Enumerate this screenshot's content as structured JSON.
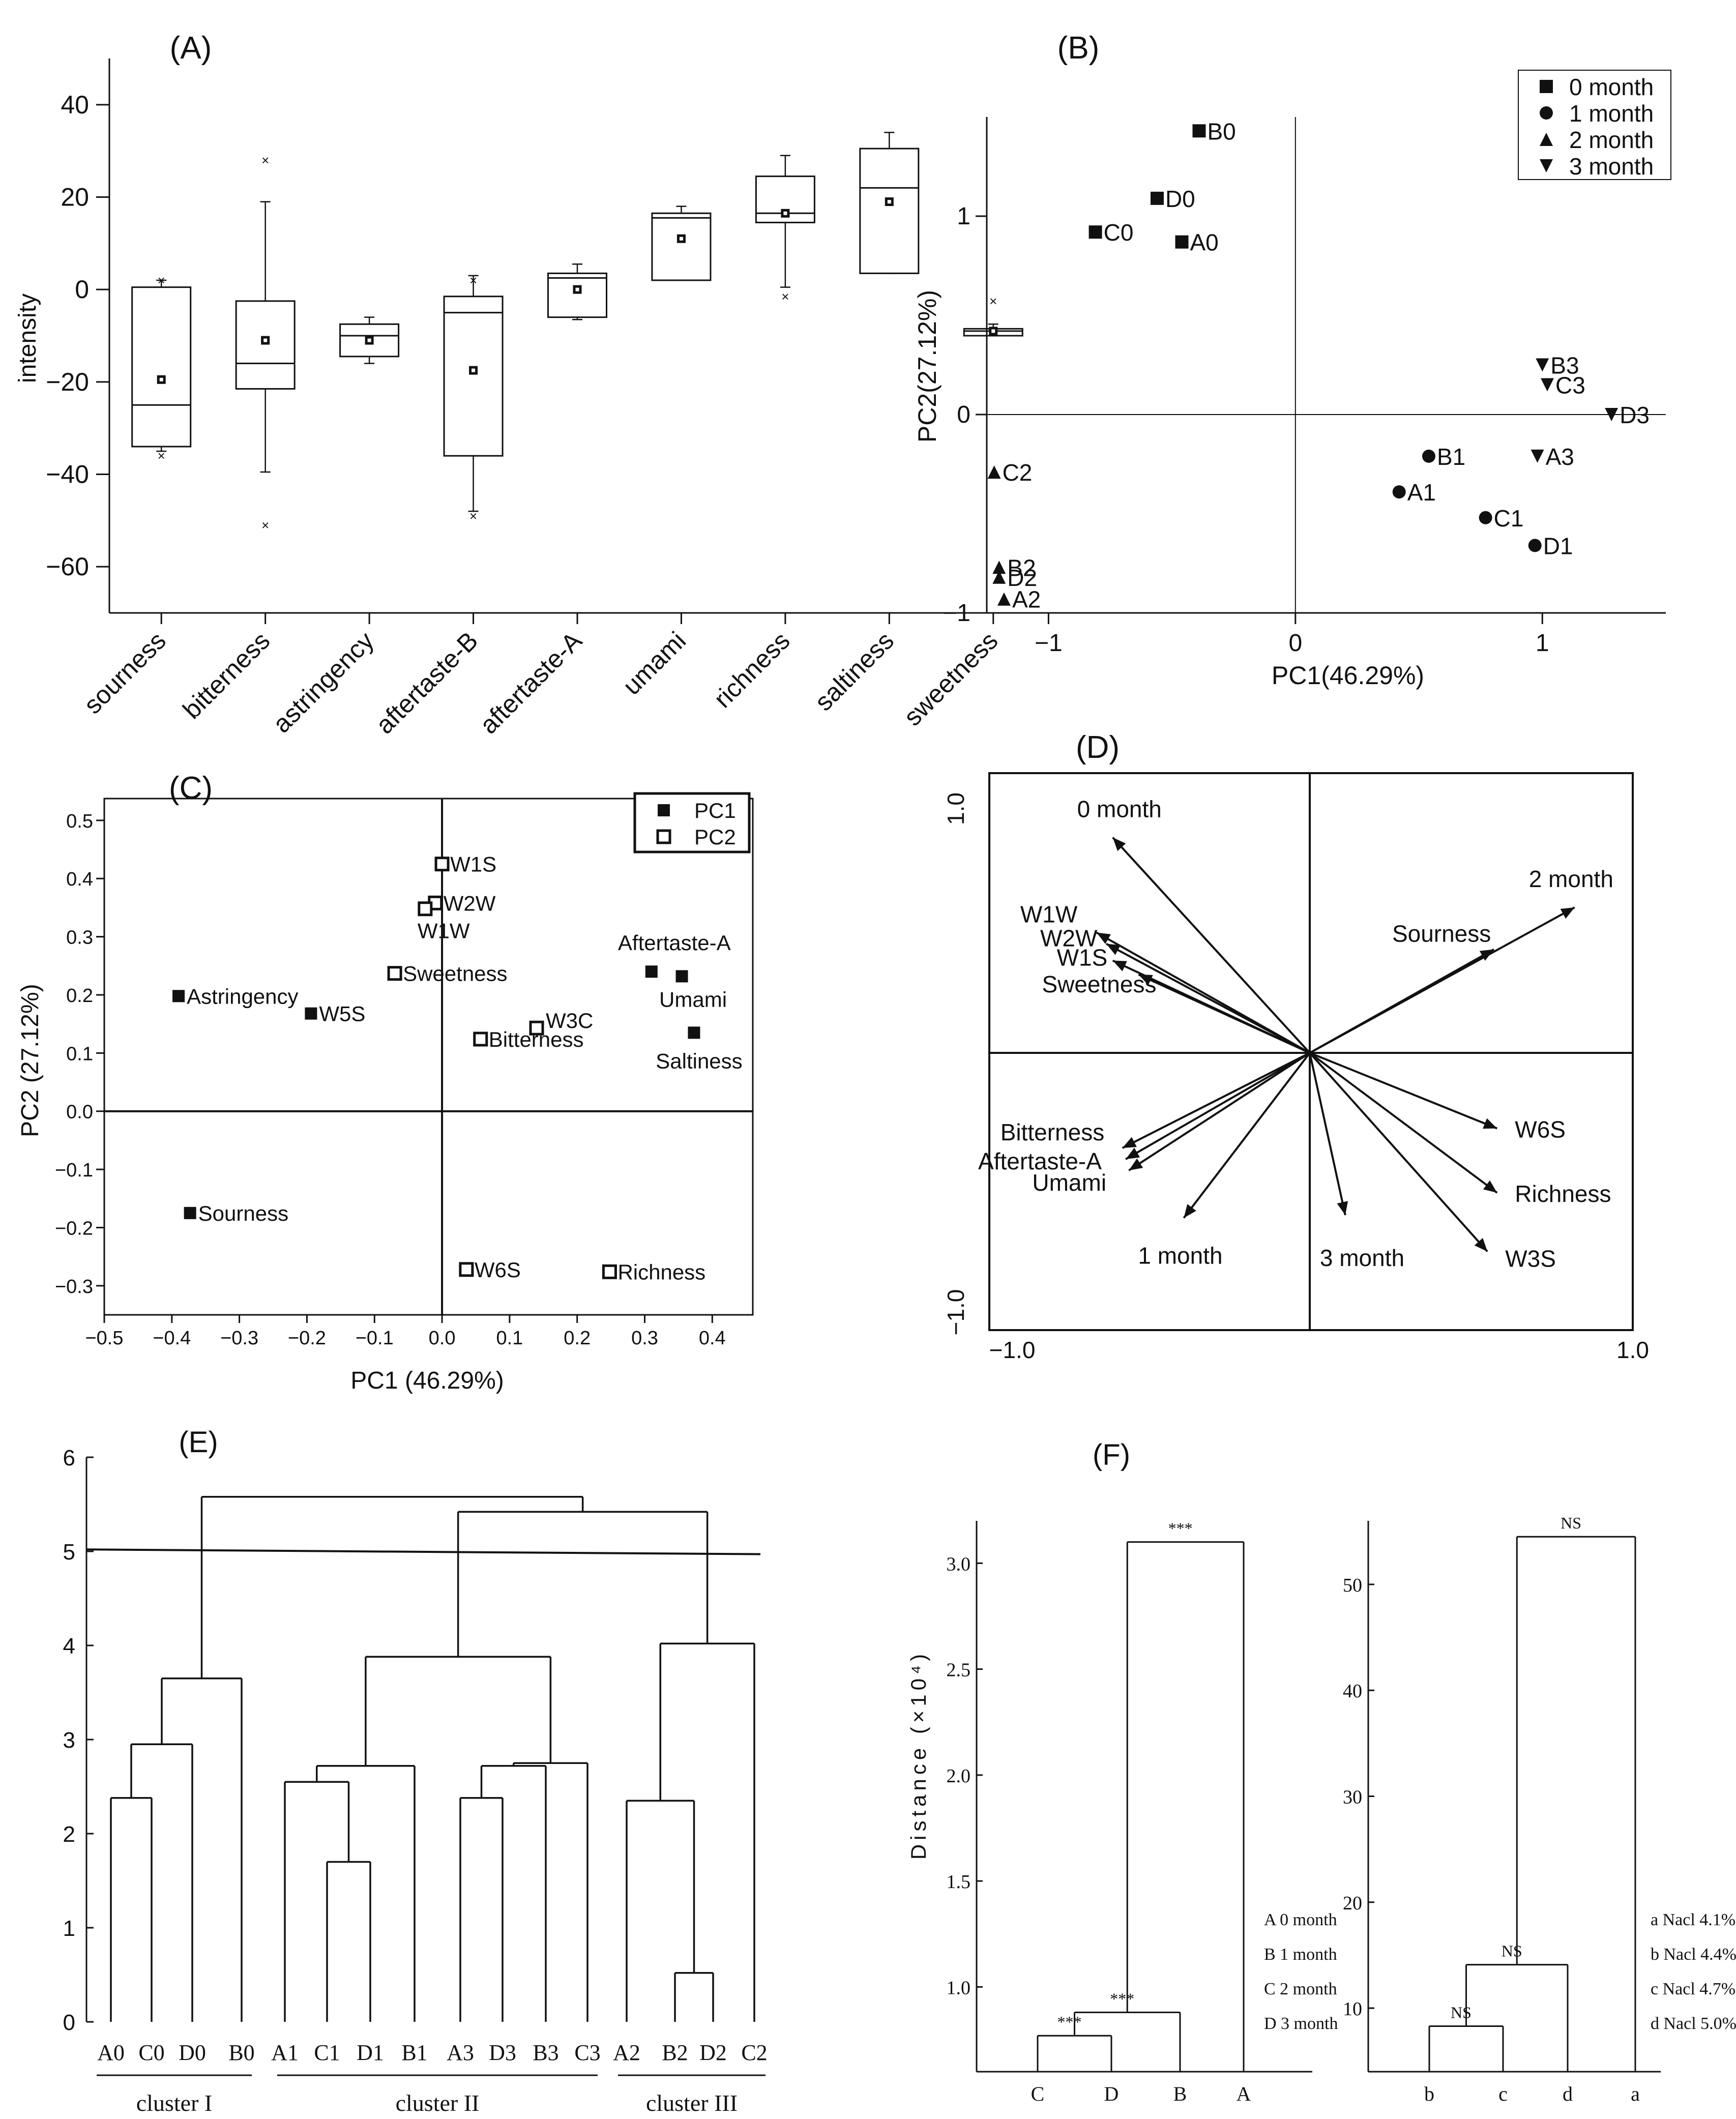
{
  "chart_data": [
    {
      "panel": "(A)",
      "type": "box",
      "ylabel": "intensity",
      "ylim": [
        -70,
        50
      ],
      "yticks": [
        40,
        20,
        0,
        -20,
        -40,
        -60
      ],
      "categories": [
        "sourness",
        "bitterness",
        "astringency",
        "aftertaste-B",
        "aftertaste-A",
        "umami",
        "richness",
        "saltiness",
        "sweetness"
      ],
      "boxes": [
        {
          "min": -35,
          "q1": -34,
          "median": -25,
          "q3": 0.5,
          "max": 2,
          "mean": -19.5,
          "outliers": [
            -36,
            2
          ]
        },
        {
          "min": -39.5,
          "q1": -21.5,
          "median": -16,
          "q3": -2.5,
          "max": 19,
          "mean": -11,
          "outliers": [
            28,
            -51
          ]
        },
        {
          "min": -16,
          "q1": -14.5,
          "median": -10,
          "q3": -7.5,
          "max": -6,
          "mean": -11,
          "outliers": []
        },
        {
          "min": -48,
          "q1": -36,
          "median": -5,
          "q3": -1.5,
          "max": 3,
          "mean": -17.5,
          "outliers": [
            -49,
            2
          ]
        },
        {
          "min": -6.5,
          "q1": -6,
          "median": 2.5,
          "q3": 3.5,
          "max": 5.5,
          "mean": 0,
          "outliers": []
        },
        {
          "min": 2,
          "q1": 2,
          "median": 15.5,
          "q3": 16.5,
          "max": 18,
          "mean": 11,
          "outliers": []
        },
        {
          "min": 0.5,
          "q1": 14.5,
          "median": 16.5,
          "q3": 24.5,
          "max": 29,
          "mean": 16.5,
          "outliers": [
            -1.5
          ]
        },
        {
          "min": 3.5,
          "q1": 3.5,
          "median": 22,
          "q3": 30.5,
          "max": 34,
          "mean": 19,
          "outliers": []
        },
        {
          "min": -10,
          "q1": -10,
          "median": -9,
          "q3": -8.5,
          "max": -7.5,
          "mean": -9,
          "outliers": [
            -2.5
          ]
        }
      ]
    },
    {
      "panel": "(B)",
      "type": "scatter",
      "xlabel": "PC1(46.29%)",
      "ylabel": "PC2(27.12%)",
      "xlim": [
        -1.25,
        1.5
      ],
      "ylim": [
        -1,
        1.5
      ],
      "xticks": [
        "−1",
        "0",
        "1"
      ],
      "yticks": [
        "1",
        "0",
        "−1"
      ],
      "legend": [
        "0 month",
        "1 month",
        "2 month",
        "3 month"
      ],
      "points": [
        {
          "label": "B0",
          "x": -0.39,
          "y": 1.43,
          "g": 0
        },
        {
          "label": "D0",
          "x": -0.56,
          "y": 1.09,
          "g": 0
        },
        {
          "label": "C0",
          "x": -0.81,
          "y": 0.92,
          "g": 0
        },
        {
          "label": "A0",
          "x": -0.46,
          "y": 0.87,
          "g": 0
        },
        {
          "label": "B1",
          "x": 0.54,
          "y": -0.21,
          "g": 1
        },
        {
          "label": "A1",
          "x": 0.42,
          "y": -0.39,
          "g": 1
        },
        {
          "label": "C1",
          "x": 0.77,
          "y": -0.52,
          "g": 1
        },
        {
          "label": "D1",
          "x": 0.97,
          "y": -0.66,
          "g": 1
        },
        {
          "label": "C2",
          "x": -1.22,
          "y": -0.29,
          "g": 2
        },
        {
          "label": "B2",
          "x": -1.2,
          "y": -0.77,
          "g": 2
        },
        {
          "label": "D2",
          "x": -1.2,
          "y": -0.82,
          "g": 2
        },
        {
          "label": "A2",
          "x": -1.18,
          "y": -0.93,
          "g": 2
        },
        {
          "label": "B3",
          "x": 1.0,
          "y": 0.25,
          "g": 3
        },
        {
          "label": "C3",
          "x": 1.02,
          "y": 0.15,
          "g": 3
        },
        {
          "label": "D3",
          "x": 1.28,
          "y": 0.0,
          "g": 3
        },
        {
          "label": "A3",
          "x": 0.98,
          "y": -0.21,
          "g": 3
        }
      ]
    },
    {
      "panel": "(C)",
      "type": "scatter",
      "xlabel": "PC1 (46.29%)",
      "ylabel": "PC2 (27.12%)",
      "xlim": [
        -0.5,
        0.46
      ],
      "ylim": [
        -0.35,
        0.52
      ],
      "xticks": [
        "−0.5",
        "−0.4",
        "−0.3",
        "−0.2",
        "−0.1",
        "0.0",
        "0.1",
        "0.2",
        "0.3",
        "0.4"
      ],
      "yticks": [
        "0.5",
        "0.4",
        "0.3",
        "0.2",
        "0.1",
        "0.0",
        "−0.1",
        "−0.2",
        "−0.3"
      ],
      "legend": [
        "PC1",
        "PC2"
      ],
      "points": [
        {
          "label": "W1S",
          "x": 0.0,
          "y": 0.425,
          "g": 1
        },
        {
          "label": "W2W",
          "x": -0.01,
          "y": 0.358,
          "g": 1
        },
        {
          "label": "W1W",
          "x": -0.025,
          "y": 0.348,
          "g": 1
        },
        {
          "label": "Sweetness",
          "x": -0.07,
          "y": 0.237,
          "g": 1
        },
        {
          "label": "W3C",
          "x": 0.14,
          "y": 0.143,
          "g": 1
        },
        {
          "label": "Bitterness",
          "x": 0.057,
          "y": 0.124,
          "g": 1
        },
        {
          "label": "W6S",
          "x": 0.036,
          "y": -0.272,
          "g": 1
        },
        {
          "label": "Richness",
          "x": 0.248,
          "y": -0.276,
          "g": 1
        },
        {
          "label": "Astringency",
          "x": -0.39,
          "y": 0.198,
          "g": 0
        },
        {
          "label": "W5S",
          "x": -0.194,
          "y": 0.168,
          "g": 0
        },
        {
          "label": "Aftertaste-A",
          "x": 0.31,
          "y": 0.24,
          "g": 0
        },
        {
          "label": "Umami",
          "x": 0.355,
          "y": 0.232,
          "g": 0
        },
        {
          "label": "Saltiness",
          "x": 0.373,
          "y": 0.135,
          "g": 0
        },
        {
          "label": "Sourness",
          "x": -0.373,
          "y": -0.175,
          "g": 0
        }
      ]
    },
    {
      "panel": "(D)",
      "type": "biplot",
      "xlim": [
        -1.0,
        1.0
      ],
      "ylim": [
        -1.0,
        1.0
      ],
      "ticks": {
        "x_left": "−1.0",
        "x_right": "1.0",
        "y_top": "1.0",
        "y_bottom": "−1.0"
      },
      "vectors": [
        {
          "label": "0 month",
          "x": -0.61,
          "y": 0.77
        },
        {
          "label": "2 month",
          "x": 0.82,
          "y": 0.52
        },
        {
          "label": "Sourness",
          "x": 0.57,
          "y": 0.37
        },
        {
          "label": "W1W",
          "x": -0.66,
          "y": 0.43
        },
        {
          "label": "W2W",
          "x": -0.63,
          "y": 0.39
        },
        {
          "label": "W1S",
          "x": -0.61,
          "y": 0.33
        },
        {
          "label": "Sweetness",
          "x": -0.53,
          "y": 0.28
        },
        {
          "label": "Bitterness",
          "x": -0.58,
          "y": -0.34
        },
        {
          "label": "Aftertaste-A",
          "x": -0.57,
          "y": -0.38
        },
        {
          "label": "Umami",
          "x": -0.56,
          "y": -0.42
        },
        {
          "label": "1 month",
          "x": -0.39,
          "y": -0.59
        },
        {
          "label": "3 month",
          "x": 0.11,
          "y": -0.58
        },
        {
          "label": "W6S",
          "x": 0.58,
          "y": -0.27
        },
        {
          "label": "Richness",
          "x": 0.58,
          "y": -0.5
        },
        {
          "label": "W3S",
          "x": 0.55,
          "y": -0.71
        }
      ]
    },
    {
      "panel": "(E)",
      "type": "dendrogram",
      "ylim": [
        0,
        6
      ],
      "yticks": [
        "6",
        "5",
        "4",
        "3",
        "2",
        "1",
        "0"
      ],
      "cut_height": 5.0,
      "leaves": [
        "A0",
        "C0",
        "D0",
        "B0",
        "A1",
        "C1",
        "D1",
        "B1",
        "A3",
        "D3",
        "B3",
        "C3",
        "A2",
        "B2",
        "D2",
        "C2"
      ],
      "merges": [
        {
          "a": "A0",
          "b": "C0",
          "h": 2.38
        },
        {
          "a": "A0C0",
          "b": "D0",
          "h": 2.95
        },
        {
          "a": "A0C0D0",
          "b": "B0",
          "h": 3.65
        },
        {
          "a": "C1",
          "b": "D1",
          "h": 1.7
        },
        {
          "a": "A1",
          "b": "C1D1",
          "h": 2.55
        },
        {
          "a": "A1C1D1",
          "b": "B1",
          "h": 2.72
        },
        {
          "a": "A3",
          "b": "D3",
          "h": 2.38
        },
        {
          "a": "A3D3",
          "b": "B3",
          "h": 2.72
        },
        {
          "a": "A3D3B3",
          "b": "C3",
          "h": 2.75
        },
        {
          "a": "cluster1",
          "b": "cluster3",
          "h": 3.88
        },
        {
          "a": "B2",
          "b": "D2",
          "h": 0.52
        },
        {
          "a": "A2",
          "b": "B2D2",
          "h": 2.35
        },
        {
          "a": "A2B2D2",
          "b": "C2",
          "h": 4.02
        },
        {
          "a": "clusterII",
          "b": "clusterIII",
          "h": 5.42
        },
        {
          "a": "clusterI",
          "b": "rest",
          "h": 5.58
        }
      ],
      "clusters": [
        "cluster I",
        "cluster II",
        "cluster III"
      ]
    },
    {
      "panel": "(F)",
      "type": "dendrogram",
      "ylabel": "Distance (×10⁴)",
      "left": {
        "ylim": [
          0.6,
          3.2
        ],
        "yticks": [
          "3.0",
          "2.5",
          "2.0",
          "1.5",
          "1.0"
        ],
        "leaves": [
          "C",
          "D",
          "B",
          "A"
        ],
        "merges": [
          {
            "a": "C",
            "b": "D",
            "h": 0.77,
            "sig": "***"
          },
          {
            "a": "CD",
            "b": "B",
            "h": 0.88,
            "sig": "***"
          },
          {
            "a": "CDB",
            "b": "A",
            "h": 3.1,
            "sig": "***"
          }
        ],
        "legend": [
          "A 0 month",
          "B 1 month",
          "C 2 month",
          "D 3 month"
        ]
      },
      "right": {
        "ylim": [
          4,
          56
        ],
        "yticks": [
          "50",
          "40",
          "30",
          "20",
          "10"
        ],
        "leaves": [
          "b",
          "c",
          "d",
          "a"
        ],
        "merges": [
          {
            "a": "b",
            "b": "c",
            "h": 8.3,
            "sig": "NS"
          },
          {
            "a": "bc",
            "b": "d",
            "h": 14.1,
            "sig": "NS"
          },
          {
            "a": "bcd",
            "b": "a",
            "h": 54.5,
            "sig": "NS"
          }
        ],
        "legend": [
          "a Nacl 4.1%",
          "b Nacl 4.4%",
          "c Nacl 4.7%",
          "d Nacl 5.0%"
        ]
      }
    }
  ]
}
